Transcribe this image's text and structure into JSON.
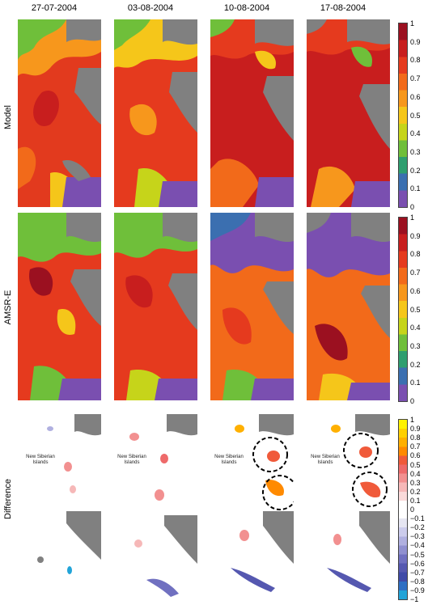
{
  "columns": [
    "27-07-2004",
    "03-08-2004",
    "10-08-2004",
    "17-08-2004"
  ],
  "rows": [
    "Model",
    "AMSR-E",
    "Difference"
  ],
  "colorbar_main": {
    "ticks": [
      "1",
      "0.9",
      "0.8",
      "0.7",
      "0.6",
      "0.5",
      "0.4",
      "0.3",
      "0.2",
      "0.1",
      "0"
    ],
    "colors": [
      "#9b1020",
      "#c81e1e",
      "#e53a1e",
      "#f26a1a",
      "#f7971c",
      "#f5c61a",
      "#c6d41a",
      "#6fbf3a",
      "#2e9e6f",
      "#3b6fb0",
      "#7a4fb0"
    ]
  },
  "colorbar_diff": {
    "ticks": [
      "1",
      "0.9",
      "0.8",
      "0.7",
      "0.6",
      "0.5",
      "0.4",
      "0.3",
      "0.2",
      "0.1",
      "0",
      "−0.1",
      "−0.2",
      "−0.3",
      "−0.4",
      "−0.5",
      "−0.6",
      "−0.7",
      "−0.8",
      "−0.9",
      "−1"
    ],
    "colors": [
      "#fff200",
      "#ffd000",
      "#ffb000",
      "#ff8a00",
      "#f05a3a",
      "#ee6a6a",
      "#f29090",
      "#f6b8b8",
      "#fadada",
      "#ffffff",
      "#ffffff",
      "#e6e6f2",
      "#ccccec",
      "#b0b0e0",
      "#9090d0",
      "#7070c0",
      "#5558b0",
      "#3f4aa8",
      "#2e6fc4",
      "#22a4d8"
    ]
  },
  "annotation": "New Siberian Islands"
}
